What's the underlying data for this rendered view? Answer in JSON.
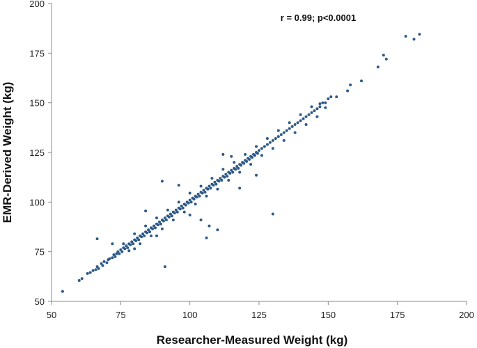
{
  "chart_data": {
    "type": "scatter",
    "title": "",
    "xlabel": "Researcher-Measured Weight (kg)",
    "ylabel": "EMR-Derived Weight (kg)",
    "xlim": [
      50,
      200
    ],
    "ylim": [
      50,
      200
    ],
    "xticks": [
      "50",
      "75",
      "100",
      "125",
      "150",
      "175",
      "200"
    ],
    "yticks": [
      "50",
      "75",
      "100",
      "125",
      "150",
      "175",
      "200"
    ],
    "grid": false,
    "legend": "none",
    "annotation": "r = 0.99; p<0.0001",
    "marker_color": "#2e5a87",
    "series": [
      {
        "points": [
          [
            54,
            55
          ],
          [
            60,
            60.5
          ],
          [
            61,
            61.5
          ],
          [
            63,
            64
          ],
          [
            64,
            64.5
          ],
          [
            65,
            65.5
          ],
          [
            66,
            66
          ],
          [
            66.5,
            67.5
          ],
          [
            67,
            66.5
          ],
          [
            68,
            69
          ],
          [
            68.5,
            68
          ],
          [
            69,
            70
          ],
          [
            70,
            69.5
          ],
          [
            70.5,
            71
          ],
          [
            71,
            71.5
          ],
          [
            72,
            72
          ],
          [
            72.5,
            73.5
          ],
          [
            73,
            72.5
          ],
          [
            73.5,
            74
          ],
          [
            74,
            75
          ],
          [
            74.5,
            74
          ],
          [
            75,
            76
          ],
          [
            75.5,
            75
          ],
          [
            76,
            77
          ],
          [
            76.5,
            76.5
          ],
          [
            77,
            78
          ],
          [
            77.5,
            77
          ],
          [
            78,
            79
          ],
          [
            78.5,
            78.5
          ],
          [
            79,
            80
          ],
          [
            79.5,
            79
          ],
          [
            80,
            81
          ],
          [
            80.5,
            80.5
          ],
          [
            81,
            82
          ],
          [
            81.5,
            81
          ],
          [
            82,
            83
          ],
          [
            82.5,
            82.5
          ],
          [
            83,
            84
          ],
          [
            83.5,
            83
          ],
          [
            84,
            85
          ],
          [
            84.5,
            84.5
          ],
          [
            85,
            86
          ],
          [
            85.5,
            85
          ],
          [
            86,
            87
          ],
          [
            86.5,
            86.5
          ],
          [
            87,
            88
          ],
          [
            87.5,
            87
          ],
          [
            88,
            89
          ],
          [
            88.5,
            88.5
          ],
          [
            89,
            90
          ],
          [
            89.5,
            89
          ],
          [
            90,
            91
          ],
          [
            90.5,
            90.5
          ],
          [
            91,
            92
          ],
          [
            91.5,
            91
          ],
          [
            92,
            93
          ],
          [
            92.5,
            92.5
          ],
          [
            93,
            94
          ],
          [
            93.5,
            93
          ],
          [
            94,
            95
          ],
          [
            94.5,
            94.5
          ],
          [
            95,
            96
          ],
          [
            95.5,
            95
          ],
          [
            96,
            97
          ],
          [
            96.5,
            96.5
          ],
          [
            97,
            98
          ],
          [
            97.5,
            97
          ],
          [
            98,
            99
          ],
          [
            98.5,
            98.5
          ],
          [
            99,
            100
          ],
          [
            99.5,
            99.5
          ],
          [
            100,
            101
          ],
          [
            100.5,
            100
          ],
          [
            101,
            102
          ],
          [
            101.5,
            101.5
          ],
          [
            102,
            103
          ],
          [
            102.5,
            102.5
          ],
          [
            103,
            104
          ],
          [
            103.5,
            103
          ],
          [
            104,
            105
          ],
          [
            104.5,
            104.5
          ],
          [
            105,
            106
          ],
          [
            105.5,
            105
          ],
          [
            106,
            107
          ],
          [
            106.5,
            106.5
          ],
          [
            107,
            108
          ],
          [
            107.5,
            107
          ],
          [
            108,
            109
          ],
          [
            108.5,
            108.5
          ],
          [
            109,
            110
          ],
          [
            109.5,
            109
          ],
          [
            110,
            111
          ],
          [
            110.5,
            110.5
          ],
          [
            111,
            112
          ],
          [
            111.5,
            111
          ],
          [
            112,
            113
          ],
          [
            112.5,
            112.5
          ],
          [
            113,
            114
          ],
          [
            113.5,
            113
          ],
          [
            114,
            115
          ],
          [
            114.5,
            114.5
          ],
          [
            115,
            116
          ],
          [
            115.5,
            115
          ],
          [
            116,
            117
          ],
          [
            116.5,
            116.5
          ],
          [
            117,
            118
          ],
          [
            117.5,
            117
          ],
          [
            118,
            119
          ],
          [
            118.5,
            118.5
          ],
          [
            119,
            120
          ],
          [
            119.5,
            119.5
          ],
          [
            120,
            121
          ],
          [
            120.5,
            120.5
          ],
          [
            121,
            122
          ],
          [
            121.5,
            121.5
          ],
          [
            122,
            123
          ],
          [
            122.5,
            122.5
          ],
          [
            123,
            124
          ],
          [
            123.5,
            123.5
          ],
          [
            124,
            125
          ],
          [
            124.5,
            124.5
          ],
          [
            125,
            126
          ],
          [
            126,
            127
          ],
          [
            127,
            128
          ],
          [
            128,
            129
          ],
          [
            129,
            130
          ],
          [
            130,
            131
          ],
          [
            131,
            132
          ],
          [
            132,
            133
          ],
          [
            133,
            134
          ],
          [
            134,
            135
          ],
          [
            135,
            136
          ],
          [
            136,
            137
          ],
          [
            137,
            138
          ],
          [
            138,
            139
          ],
          [
            139,
            140
          ],
          [
            140,
            141
          ],
          [
            141,
            142
          ],
          [
            142,
            143
          ],
          [
            143,
            144
          ],
          [
            144,
            145
          ],
          [
            145,
            146
          ],
          [
            146,
            147
          ],
          [
            147,
            148
          ],
          [
            148,
            150
          ],
          [
            149,
            150
          ],
          [
            150,
            152
          ],
          [
            151,
            153
          ],
          [
            153,
            153
          ],
          [
            157,
            156
          ],
          [
            158,
            159
          ],
          [
            162,
            161
          ],
          [
            168,
            168
          ],
          [
            170,
            174
          ],
          [
            171,
            172
          ],
          [
            178,
            183.5
          ],
          [
            181,
            182
          ],
          [
            183,
            184.5
          ],
          [
            76,
            79
          ],
          [
            78,
            75.5
          ],
          [
            80,
            84
          ],
          [
            82,
            79
          ],
          [
            84,
            88
          ],
          [
            86,
            83
          ],
          [
            88,
            92
          ],
          [
            90,
            86.5
          ],
          [
            92,
            96
          ],
          [
            94,
            91
          ],
          [
            96,
            100
          ],
          [
            98,
            95
          ],
          [
            100,
            104.5
          ],
          [
            102,
            99
          ],
          [
            104,
            108
          ],
          [
            106,
            103
          ],
          [
            108,
            112
          ],
          [
            110,
            106.5
          ],
          [
            112,
            116.5
          ],
          [
            114,
            111
          ],
          [
            116,
            120
          ],
          [
            118,
            115
          ],
          [
            120,
            124
          ],
          [
            122,
            119
          ],
          [
            124,
            128
          ],
          [
            126,
            123.5
          ],
          [
            128,
            132
          ],
          [
            130,
            127
          ],
          [
            132,
            136
          ],
          [
            134,
            131
          ],
          [
            136,
            140
          ],
          [
            138,
            135
          ],
          [
            140,
            144
          ],
          [
            142,
            139
          ],
          [
            144,
            148
          ],
          [
            146,
            143
          ],
          [
            147,
            149.5
          ],
          [
            149,
            147.5
          ],
          [
            66.5,
            81.5
          ],
          [
            90,
            110.5
          ],
          [
            91,
            67.5
          ],
          [
            104,
            91
          ],
          [
            106,
            82
          ],
          [
            107,
            88
          ],
          [
            110,
            86
          ],
          [
            130,
            94
          ],
          [
            72,
            79
          ],
          [
            84,
            95.5
          ],
          [
            96,
            108.5
          ],
          [
            112,
            124
          ],
          [
            118,
            107
          ],
          [
            124,
            113.5
          ],
          [
            115,
            123
          ],
          [
            100,
            93.5
          ],
          [
            88,
            83
          ],
          [
            80,
            76.5
          ]
        ]
      }
    ]
  }
}
